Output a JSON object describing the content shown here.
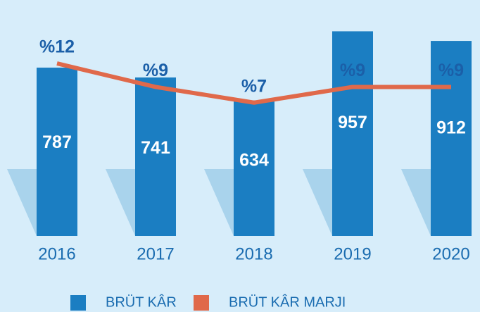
{
  "chart_data": {
    "type": "bar",
    "categories": [
      "2016",
      "2017",
      "2018",
      "2019",
      "2020"
    ],
    "series": [
      {
        "name": "BRÜT KÂR",
        "color": "#1b7ec2",
        "values": [
          787,
          741,
          634,
          957,
          912
        ]
      },
      {
        "name": "BRÜT KÂR MARJI",
        "color": "#e0694a",
        "axis": "y2",
        "values": [
          12,
          9,
          7,
          9,
          9
        ],
        "value_labels": [
          "%12",
          "%9",
          "%7",
          "%9",
          "%9"
        ]
      }
    ],
    "ylim": [
      0,
      1100
    ],
    "y2lim": [
      -10,
      20
    ],
    "grid": false
  }
}
